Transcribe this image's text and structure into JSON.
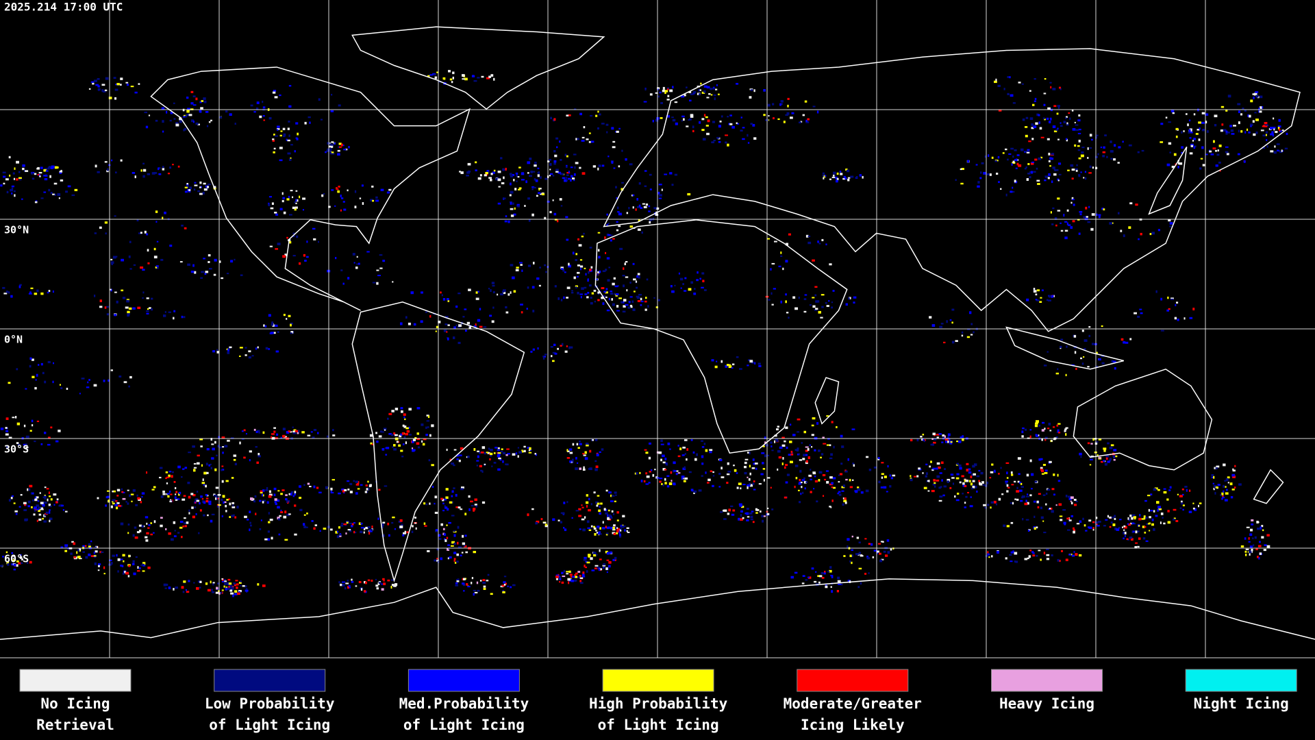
{
  "header": {
    "timestamp": "2025.214 17:00 UTC"
  },
  "map": {
    "latitude_labels": [
      "30°N",
      "0°N",
      "30°S",
      "60°S"
    ]
  },
  "legend": [
    {
      "label": [
        "No Icing",
        "Retrieval"
      ],
      "color": "#f0f0f0"
    },
    {
      "label": [
        "Low Probability",
        "of Light Icing"
      ],
      "color": "#000a80"
    },
    {
      "label": [
        "Med.Probability",
        "of Light Icing"
      ],
      "color": "#0000ff"
    },
    {
      "label": [
        "High Probability",
        "of Light Icing"
      ],
      "color": "#ffff00"
    },
    {
      "label": [
        "Moderate/Greater",
        "Icing Likely"
      ],
      "color": "#ff0000"
    },
    {
      "label": [
        "Heavy Icing"
      ],
      "color": "#e8a0e0"
    },
    {
      "label": [
        "Night Icing"
      ],
      "color": "#00f0f0"
    }
  ]
}
